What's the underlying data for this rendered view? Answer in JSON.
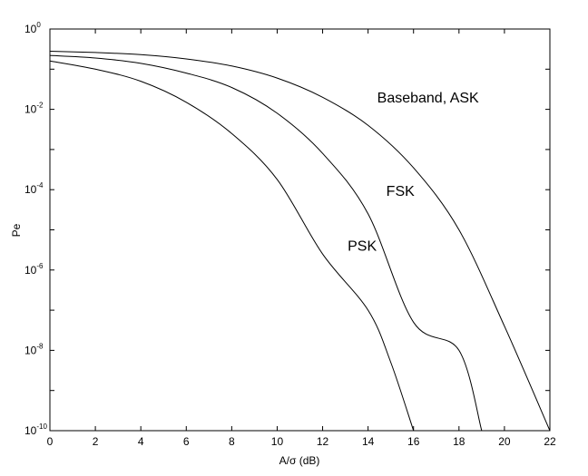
{
  "chart_data": {
    "type": "line",
    "title": "",
    "xlabel": "A/σ (dB)",
    "ylabel": "Pe",
    "xlim": [
      0,
      22
    ],
    "ylim_exponents": [
      -10,
      0
    ],
    "yscale": "log",
    "grid": false,
    "x_ticks": [
      "0",
      "2",
      "4",
      "6",
      "8",
      "10",
      "12",
      "14",
      "16",
      "18",
      "20",
      "22"
    ],
    "y_ticks": [
      {
        "base": "10",
        "exp": "0"
      },
      {
        "base": "10",
        "exp": "-2"
      },
      {
        "base": "10",
        "exp": "-4"
      },
      {
        "base": "10",
        "exp": "-6"
      },
      {
        "base": "10",
        "exp": "-8"
      },
      {
        "base": "10",
        "exp": "-10"
      }
    ],
    "series": [
      {
        "name": "Baseband, ASK",
        "x": [
          0,
          2,
          4,
          6,
          8,
          10,
          12,
          14,
          16,
          18,
          20,
          22
        ],
        "y": [
          0.28,
          0.26,
          0.23,
          0.18,
          0.12,
          0.06,
          0.02,
          0.004,
          0.00035,
          1e-05,
          4e-08,
          1e-10
        ]
      },
      {
        "name": "FSK",
        "x": [
          0,
          2,
          4,
          6,
          8,
          10,
          12,
          14,
          16,
          18,
          19
        ],
        "y": [
          0.22,
          0.19,
          0.14,
          0.08,
          0.035,
          0.008,
          0.0008,
          2.5e-05,
          5e-08,
          1e-08,
          1e-10
        ]
      },
      {
        "name": "PSK",
        "x": [
          0,
          2,
          4,
          6,
          8,
          10,
          12,
          14,
          15,
          16
        ],
        "y": [
          0.16,
          0.1,
          0.05,
          0.015,
          0.0025,
          0.00018,
          2.5e-06,
          1e-07,
          5e-09,
          1e-10
        ]
      }
    ],
    "annotations": [
      {
        "text": "Baseband, ASK",
        "x": 14.4,
        "y": 0.015
      },
      {
        "text": "FSK",
        "x": 14.8,
        "y": 7e-05
      },
      {
        "text": "PSK",
        "x": 13.1,
        "y": 3e-06
      }
    ]
  }
}
